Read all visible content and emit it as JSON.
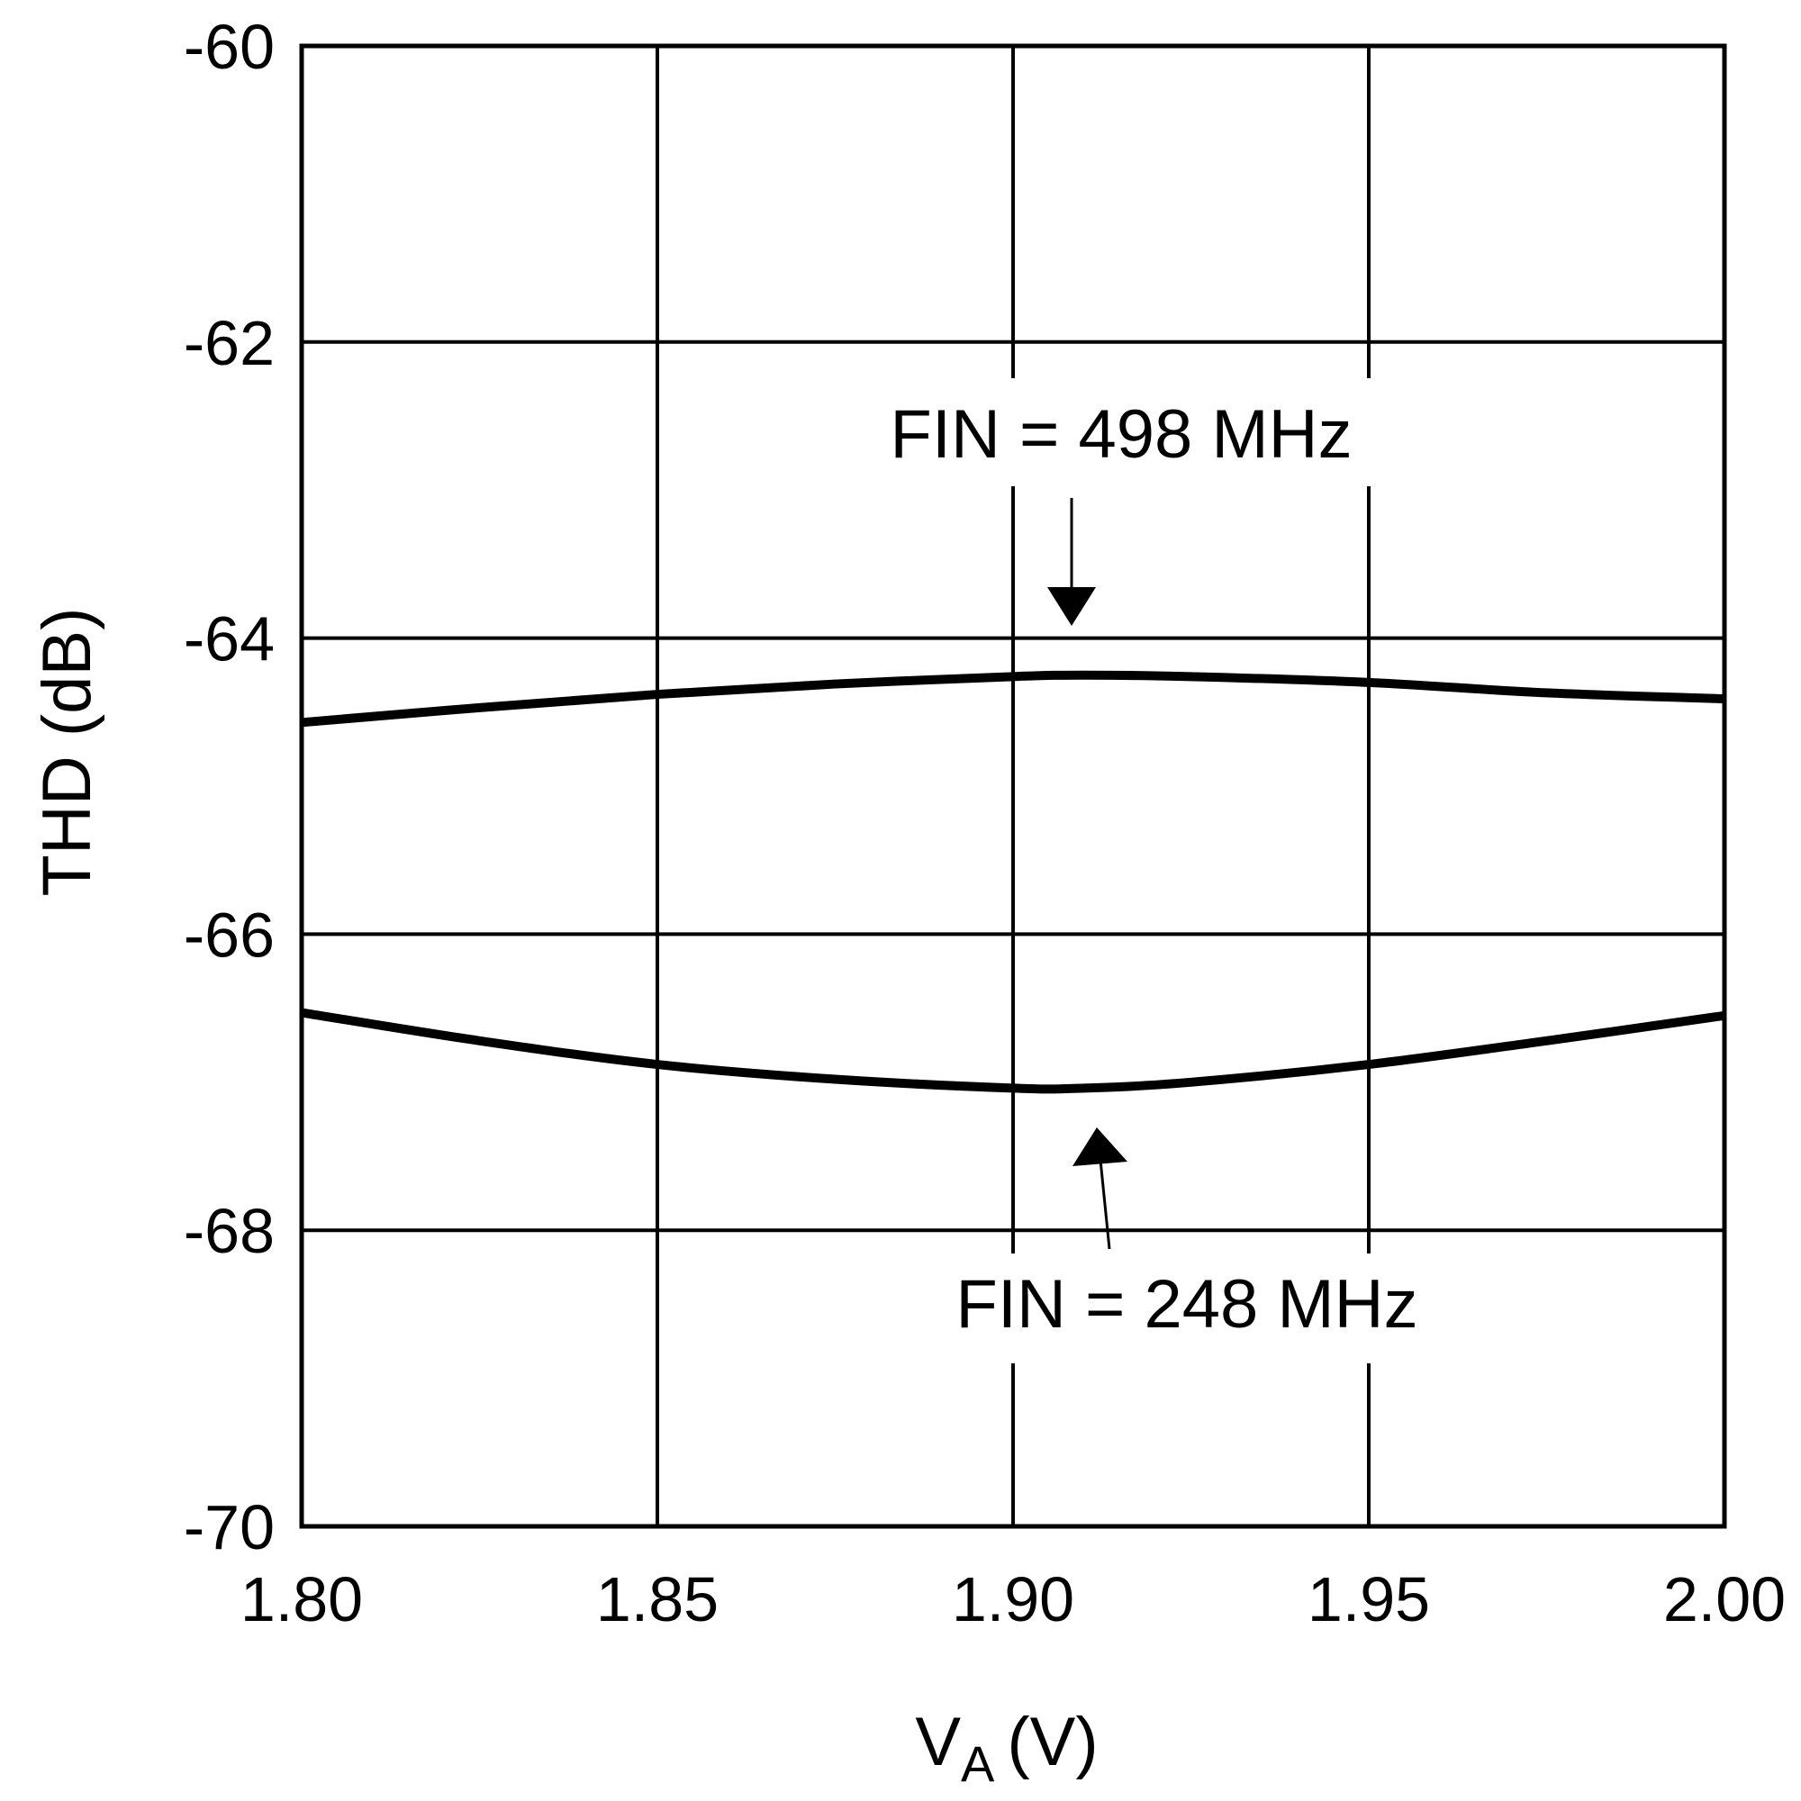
{
  "chart_data": {
    "type": "line",
    "title": "",
    "xlabel": "V",
    "xlabel_sub": "A",
    "xlabel_unit": "(V)",
    "ylabel": "THD (dB)",
    "xlim": [
      1.8,
      2.0
    ],
    "ylim": [
      -70,
      -60
    ],
    "x_ticks": [
      "1.80",
      "1.85",
      "1.90",
      "1.95",
      "2.00"
    ],
    "y_ticks": [
      "-60",
      "-62",
      "-64",
      "-66",
      "-68",
      "-70"
    ],
    "grid": true,
    "series": [
      {
        "name": "FIN = 498 MHz",
        "x": [
          1.8,
          1.825,
          1.85,
          1.875,
          1.9,
          1.91,
          1.925,
          1.95,
          1.975,
          2.0
        ],
        "values": [
          -64.57,
          -64.47,
          -64.38,
          -64.31,
          -64.26,
          -64.25,
          -64.26,
          -64.3,
          -64.37,
          -64.41
        ]
      },
      {
        "name": "FIN = 248 MHz",
        "x": [
          1.8,
          1.825,
          1.85,
          1.875,
          1.9,
          1.91,
          1.925,
          1.95,
          1.975,
          2.0
        ],
        "values": [
          -66.53,
          -66.72,
          -66.88,
          -66.98,
          -67.04,
          -67.04,
          -67.0,
          -66.88,
          -66.72,
          -66.55
        ]
      }
    ],
    "annotations": [
      {
        "text": "FIN = 498 MHz",
        "series": 0
      },
      {
        "text": "FIN = 248 MHz",
        "series": 1
      }
    ]
  }
}
